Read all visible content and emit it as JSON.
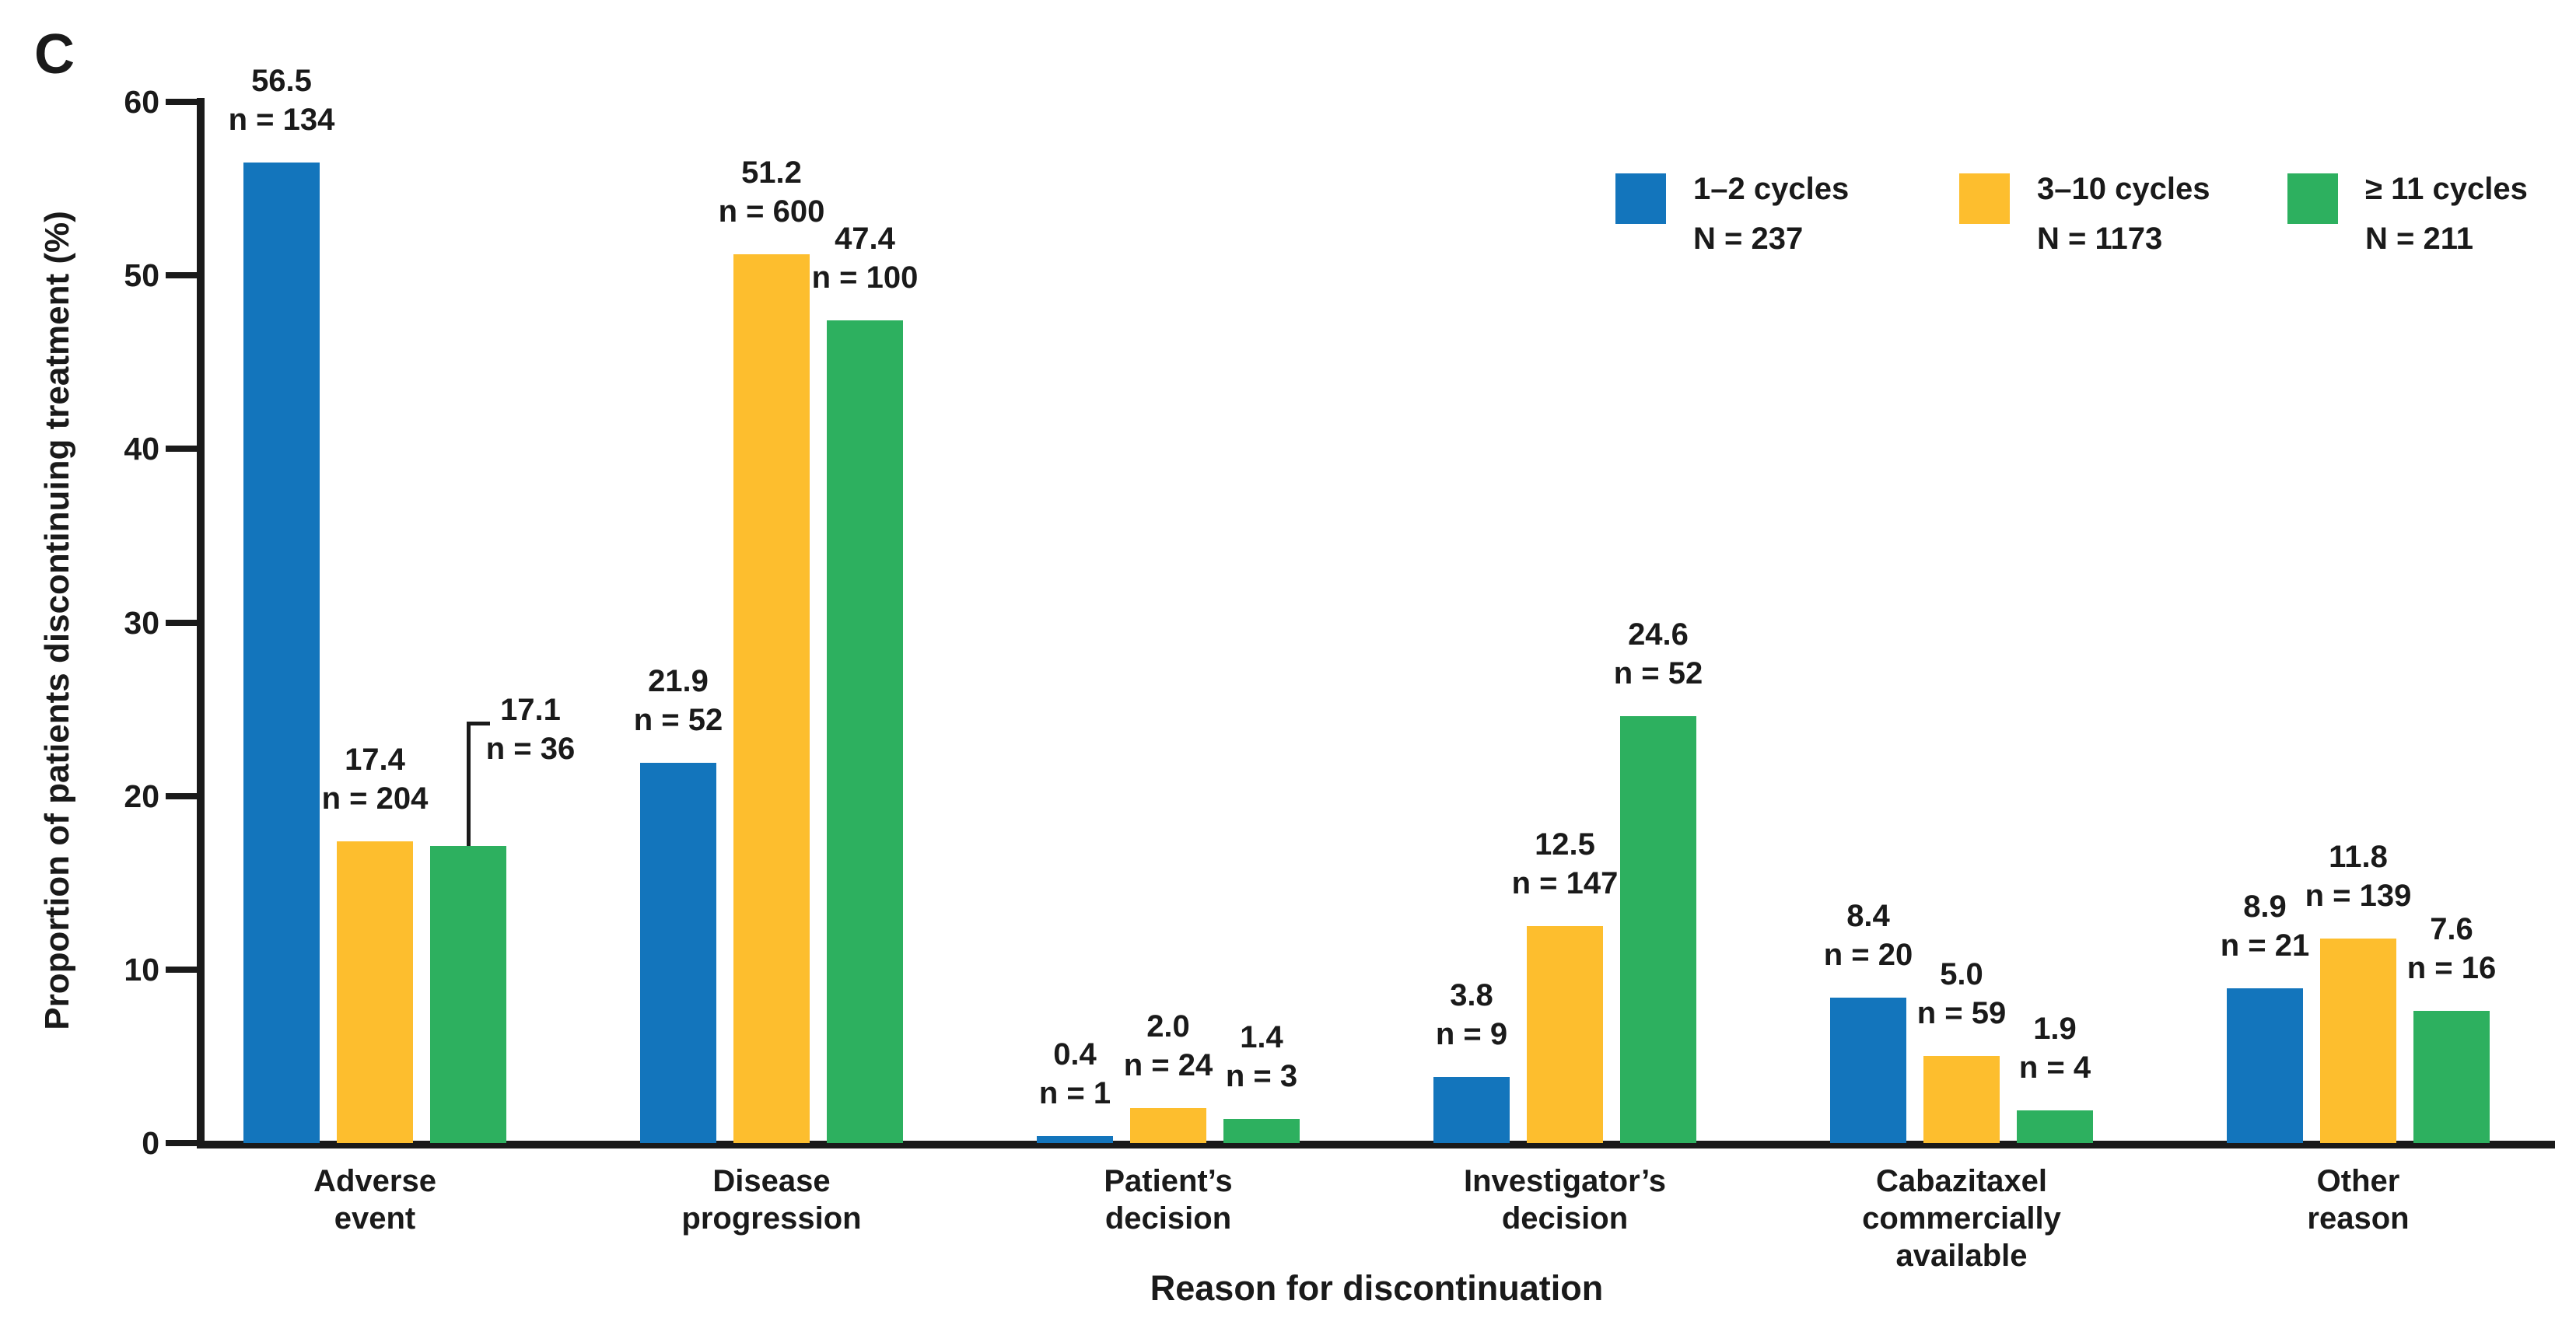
{
  "chart_data": {
    "type": "bar",
    "panel_label": "C",
    "ylabel": "Proportion of patients discontinuing treatment (%)",
    "xlabel": "Reason for discontinuation",
    "ylim": [
      0,
      60
    ],
    "yticks": [
      0,
      10,
      20,
      30,
      40,
      50,
      60
    ],
    "grid": false,
    "background_color": "#ffffff",
    "axis_color": "#1a1a1a",
    "legend_position": "top-right",
    "categories": [
      [
        "Adverse",
        "event"
      ],
      [
        "Disease",
        "progression"
      ],
      [
        "Patient’s",
        "decision"
      ],
      [
        "Investigator’s",
        "decision"
      ],
      [
        "Cabazitaxel",
        "commercially",
        "available"
      ],
      [
        "Other",
        "reason"
      ]
    ],
    "series": [
      {
        "name": "1–2 cycles",
        "n_total": "N = 237",
        "color": "#1375BC",
        "values": [
          56.5,
          21.9,
          0.4,
          3.8,
          8.4,
          8.9
        ],
        "counts": [
          134,
          52,
          1,
          9,
          20,
          21
        ]
      },
      {
        "name": "3–10 cycles",
        "n_total": "N = 1173",
        "color": "#FDBE2E",
        "values": [
          17.4,
          51.2,
          2.0,
          12.5,
          5.0,
          11.8
        ],
        "counts": [
          204,
          600,
          24,
          147,
          59,
          139
        ]
      },
      {
        "name": "≥ 11 cycles",
        "n_total": "N = 211",
        "color": "#2DB05F",
        "values": [
          17.1,
          47.4,
          1.4,
          24.6,
          1.9,
          7.6
        ],
        "counts": [
          36,
          100,
          3,
          52,
          4,
          16
        ]
      }
    ],
    "count_label_prefix": "n = ",
    "annotations": [
      {
        "series_index": 2,
        "category_index": 0,
        "label_dx": 80,
        "label_dy": -70,
        "leader_line": true
      }
    ]
  }
}
